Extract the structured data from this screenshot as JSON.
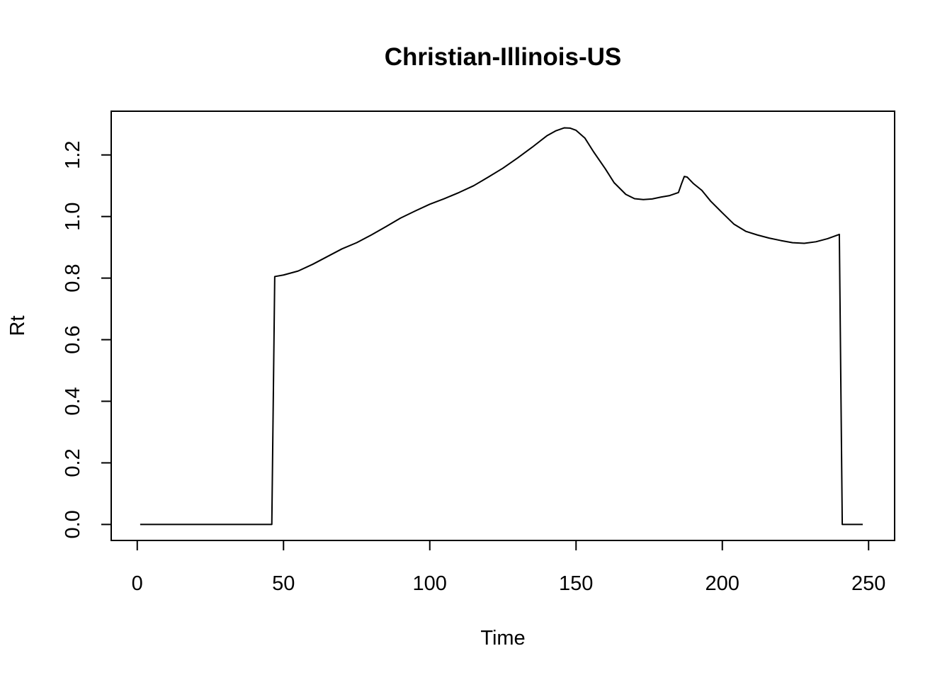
{
  "chart_data": {
    "type": "line",
    "title": "Christian-Illinois-US",
    "xlabel": "Time",
    "ylabel": "Rt",
    "xlim": [
      -8.9,
      258.9
    ],
    "ylim": [
      -0.052,
      1.342
    ],
    "xticks": [
      0,
      50,
      100,
      150,
      200,
      250
    ],
    "yticks": [
      0.0,
      0.2,
      0.4,
      0.6,
      0.8,
      1.0,
      1.2
    ],
    "xtick_labels": [
      "0",
      "50",
      "100",
      "150",
      "200",
      "250"
    ],
    "ytick_labels": [
      "0.0",
      "0.2",
      "0.4",
      "0.6",
      "0.8",
      "1.0",
      "1.2"
    ],
    "grid": false,
    "legend": false,
    "line_color": "#000000",
    "series": [
      {
        "x": [
          1,
          46,
          47,
          50,
          55,
          60,
          65,
          70,
          75,
          80,
          85,
          90,
          95,
          100,
          105,
          110,
          115,
          120,
          125,
          130,
          135,
          140,
          143,
          146,
          148,
          150,
          153,
          156,
          160,
          163,
          167,
          170,
          173,
          176,
          179,
          182,
          185,
          186,
          187,
          188,
          190,
          193,
          196,
          200,
          204,
          208,
          212,
          216,
          220,
          224,
          228,
          232,
          236,
          240,
          241,
          248
        ],
        "y": [
          0,
          0,
          0.805,
          0.81,
          0.823,
          0.845,
          0.87,
          0.895,
          0.915,
          0.94,
          0.967,
          0.995,
          1.018,
          1.04,
          1.058,
          1.078,
          1.1,
          1.128,
          1.157,
          1.19,
          1.225,
          1.262,
          1.278,
          1.288,
          1.287,
          1.28,
          1.255,
          1.21,
          1.155,
          1.11,
          1.072,
          1.058,
          1.055,
          1.057,
          1.063,
          1.068,
          1.078,
          1.105,
          1.13,
          1.128,
          1.108,
          1.085,
          1.05,
          1.012,
          0.975,
          0.952,
          0.94,
          0.93,
          0.922,
          0.915,
          0.913,
          0.918,
          0.928,
          0.942,
          0,
          0
        ]
      }
    ]
  }
}
